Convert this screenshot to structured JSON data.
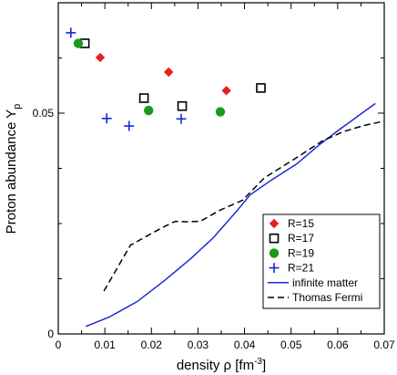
{
  "chart_data": {
    "type": "scatter",
    "xlabel": "density ρ [fm",
    "xlabel_sup": "-3",
    "xlabel_close": "]",
    "ylabel": "Proton abundance Y",
    "ylabel_sub": "p",
    "xlim": [
      0,
      0.07
    ],
    "ylim": [
      0,
      0.075
    ],
    "x_ticks": [
      {
        "value": 0,
        "label": "0"
      },
      {
        "value": 0.01,
        "label": "0.01"
      },
      {
        "value": 0.02,
        "label": "0.02"
      },
      {
        "value": 0.03,
        "label": "0.03"
      },
      {
        "value": 0.04,
        "label": "0.04"
      },
      {
        "value": 0.05,
        "label": "0.05"
      },
      {
        "value": 0.06,
        "label": "0.06"
      },
      {
        "value": 0.07,
        "label": "0.07"
      }
    ],
    "y_ticks": [
      {
        "value": 0,
        "label": "0"
      },
      {
        "value": 0.05,
        "label": "0.05"
      }
    ],
    "legend_position": "bottom-right",
    "series": [
      {
        "name": "R=15",
        "kind": "diamond",
        "color": "#e8201a",
        "points": [
          [
            0.009,
            0.0626
          ],
          [
            0.0237,
            0.0593
          ],
          [
            0.0361,
            0.0551
          ]
        ]
      },
      {
        "name": "R=17",
        "kind": "square",
        "color": "#000000",
        "points": [
          [
            0.0057,
            0.0658
          ],
          [
            0.0184,
            0.0534
          ],
          [
            0.0266,
            0.0516
          ],
          [
            0.0435,
            0.0557
          ]
        ]
      },
      {
        "name": "R=19",
        "kind": "circle",
        "color": "#1a9a1a",
        "points": [
          [
            0.0043,
            0.0658
          ],
          [
            0.0194,
            0.0506
          ],
          [
            0.0348,
            0.0503
          ]
        ]
      },
      {
        "name": "R=21",
        "kind": "plus",
        "color": "#1a28d8",
        "points": [
          [
            0.0027,
            0.0682
          ],
          [
            0.0104,
            0.0488
          ],
          [
            0.0152,
            0.0471
          ],
          [
            0.0264,
            0.0487
          ]
        ]
      },
      {
        "name": "infinite matter",
        "kind": "line",
        "color": "#1a28d8",
        "dash": false,
        "points": [
          [
            0.0059,
            0.0017
          ],
          [
            0.0109,
            0.0038
          ],
          [
            0.0169,
            0.0073
          ],
          [
            0.0227,
            0.012
          ],
          [
            0.0284,
            0.017
          ],
          [
            0.0333,
            0.0218
          ],
          [
            0.0383,
            0.0278
          ],
          [
            0.0412,
            0.0315
          ],
          [
            0.0457,
            0.0348
          ],
          [
            0.0512,
            0.0385
          ],
          [
            0.0559,
            0.0427
          ],
          [
            0.0604,
            0.0463
          ],
          [
            0.0681,
            0.0522
          ]
        ]
      },
      {
        "name": "Thomas Fermi",
        "kind": "line",
        "color": "#000000",
        "dash": true,
        "points": [
          [
            0.0098,
            0.0097
          ],
          [
            0.0127,
            0.015
          ],
          [
            0.0155,
            0.0201
          ],
          [
            0.0196,
            0.0225
          ],
          [
            0.0222,
            0.024
          ],
          [
            0.0251,
            0.0255
          ],
          [
            0.0276,
            0.0254
          ],
          [
            0.0305,
            0.0255
          ],
          [
            0.0345,
            0.0279
          ],
          [
            0.0396,
            0.0303
          ],
          [
            0.0442,
            0.0353
          ],
          [
            0.0507,
            0.0396
          ],
          [
            0.0567,
            0.0437
          ],
          [
            0.0612,
            0.0458
          ],
          [
            0.0656,
            0.0472
          ],
          [
            0.07,
            0.0482
          ]
        ]
      }
    ]
  }
}
